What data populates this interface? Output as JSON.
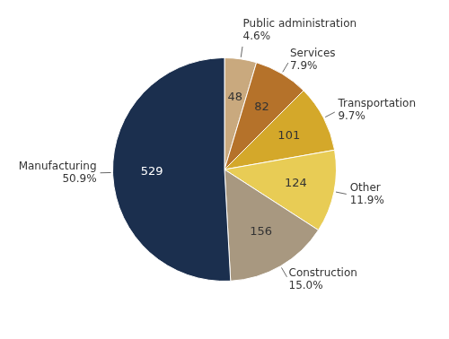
{
  "chart_data": {
    "type": "pie",
    "categories": [
      "Public administration",
      "Services",
      "Transportation",
      "Other",
      "Construction",
      "Manufacturing"
    ],
    "values": [
      48,
      82,
      101,
      124,
      156,
      529
    ],
    "percentages": [
      {
        "value": 4.6,
        "label": "4.6%"
      },
      {
        "value": 7.9,
        "label": "7.9%"
      },
      {
        "value": 9.7,
        "label": "9.7%"
      },
      {
        "value": 11.9,
        "label": "11.9%"
      },
      {
        "value": 15.0,
        "label": "15.0%"
      },
      {
        "value": 50.9,
        "label": "50.9%"
      }
    ],
    "colors": [
      "#c9a97e",
      "#b5722a",
      "#d4a82a",
      "#e8cc55",
      "#a89880",
      "#1b2f4e"
    ],
    "data_labels": true
  }
}
